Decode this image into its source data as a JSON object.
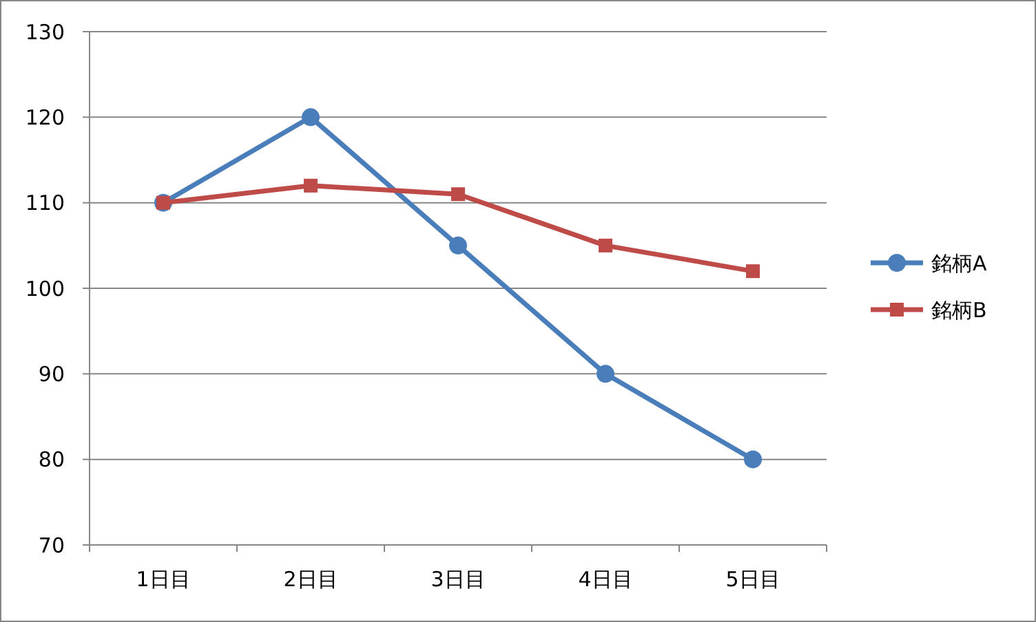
{
  "chart_data": {
    "type": "line",
    "categories": [
      "1日目",
      "2日目",
      "3日目",
      "4日目",
      "5日目"
    ],
    "series": [
      {
        "name": "銘柄A",
        "color": "#4a7ebb",
        "marker": "circle",
        "values": [
          110,
          120,
          105,
          90,
          80
        ]
      },
      {
        "name": "銘柄B",
        "color": "#be4b48",
        "marker": "square",
        "values": [
          110,
          112,
          111,
          105,
          102
        ]
      }
    ],
    "ylim": [
      70,
      130
    ],
    "yticks": [
      70,
      80,
      90,
      100,
      110,
      120,
      130
    ],
    "grid": "y",
    "legend": "right",
    "line_style": "solid"
  }
}
